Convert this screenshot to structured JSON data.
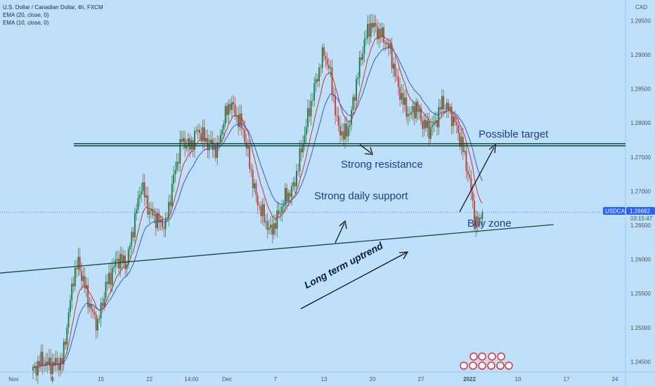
{
  "legend": {
    "title": "U.S. Dollar / Canadian Dollar, 4h, FXCM",
    "ema1": "EMA (20, close, 0)",
    "ema2": "EMA (10, close, 0)"
  },
  "currency": "CAD",
  "symbol_tag": "USDCAD",
  "current_price": "1.26692",
  "countdown": "03:15:47",
  "annotations": {
    "possible_target": "Possible target",
    "strong_resistance": "Strong resistance",
    "strong_daily_support": "Strong daily support",
    "buy_zone": "Buy zone",
    "long_term_uptrend": "Long term uptrend"
  },
  "colors": {
    "background": "#bfe0fb",
    "up_candle": "#1a7a3a",
    "down_candle": "#c0392b",
    "ema20": "#3d57c9",
    "ema10": "#c0392b",
    "lines": "#0f4d3a",
    "annotation_text": "#1f3e8a",
    "symbol_tag": "#2962ff"
  },
  "chart_data": {
    "type": "candlestick",
    "ylim": [
      1.2435,
      1.2975
    ],
    "y_ticks": [
      "1.29500",
      "1.29000",
      "1.28500",
      "1.28000",
      "1.27500",
      "1.27000",
      "1.26500",
      "1.26000",
      "1.25500",
      "1.25000",
      "1.24500"
    ],
    "y_tick_values": [
      1.295,
      1.29,
      1.285,
      1.28,
      1.275,
      1.27,
      1.265,
      1.26,
      1.255,
      1.25,
      1.245
    ],
    "x_ticks": [
      "Nov",
      "8",
      "15",
      "22",
      "14:00",
      "Dec",
      "7",
      "13",
      "20",
      "27",
      "2022",
      "10",
      "17",
      "24"
    ],
    "x_tick_bars": [
      -12,
      12,
      42,
      72,
      98,
      120,
      150,
      180,
      210,
      240,
      270,
      300,
      330,
      360
    ],
    "resistance_level": 1.2768,
    "trendline": {
      "from_bar": -25,
      "from_price": 1.2579,
      "to_bar": 322,
      "to_price": 1.2651
    },
    "close_path": [
      [
        0,
        1.2436
      ],
      [
        5,
        1.2452
      ],
      [
        10,
        1.2445
      ],
      [
        15,
        1.2448
      ],
      [
        18,
        1.245
      ],
      [
        22,
        1.252
      ],
      [
        25,
        1.2575
      ],
      [
        28,
        1.2595
      ],
      [
        32,
        1.256
      ],
      [
        36,
        1.2525
      ],
      [
        40,
        1.2505
      ],
      [
        45,
        1.256
      ],
      [
        52,
        1.26
      ],
      [
        58,
        1.2595
      ],
      [
        63,
        1.266
      ],
      [
        67,
        1.271
      ],
      [
        72,
        1.267
      ],
      [
        78,
        1.2655
      ],
      [
        82,
        1.265
      ],
      [
        87,
        1.272
      ],
      [
        92,
        1.2775
      ],
      [
        97,
        1.2765
      ],
      [
        102,
        1.279
      ],
      [
        108,
        1.277
      ],
      [
        114,
        1.276
      ],
      [
        118,
        1.2805
      ],
      [
        122,
        1.283
      ],
      [
        126,
        1.281
      ],
      [
        130,
        1.279
      ],
      [
        134,
        1.274
      ],
      [
        138,
        1.269
      ],
      [
        143,
        1.266
      ],
      [
        147,
        1.264
      ],
      [
        151,
        1.266
      ],
      [
        156,
        1.269
      ],
      [
        161,
        1.2705
      ],
      [
        166,
        1.276
      ],
      [
        171,
        1.282
      ],
      [
        176,
        1.287
      ],
      [
        180,
        1.2905
      ],
      [
        184,
        1.287
      ],
      [
        188,
        1.28
      ],
      [
        192,
        1.278
      ],
      [
        196,
        1.28
      ],
      [
        200,
        1.286
      ],
      [
        205,
        1.292
      ],
      [
        209,
        1.2945
      ],
      [
        213,
        1.2935
      ],
      [
        217,
        1.2925
      ],
      [
        221,
        1.2905
      ],
      [
        225,
        1.286
      ],
      [
        229,
        1.283
      ],
      [
        233,
        1.281
      ],
      [
        237,
        1.2825
      ],
      [
        241,
        1.28
      ],
      [
        245,
        1.279
      ],
      [
        249,
        1.28
      ],
      [
        253,
        1.283
      ],
      [
        257,
        1.282
      ],
      [
        261,
        1.28
      ],
      [
        265,
        1.277
      ],
      [
        268,
        1.274
      ],
      [
        271,
        1.27
      ],
      [
        273,
        1.266
      ],
      [
        275,
        1.265
      ],
      [
        278,
        1.2669
      ]
    ]
  }
}
